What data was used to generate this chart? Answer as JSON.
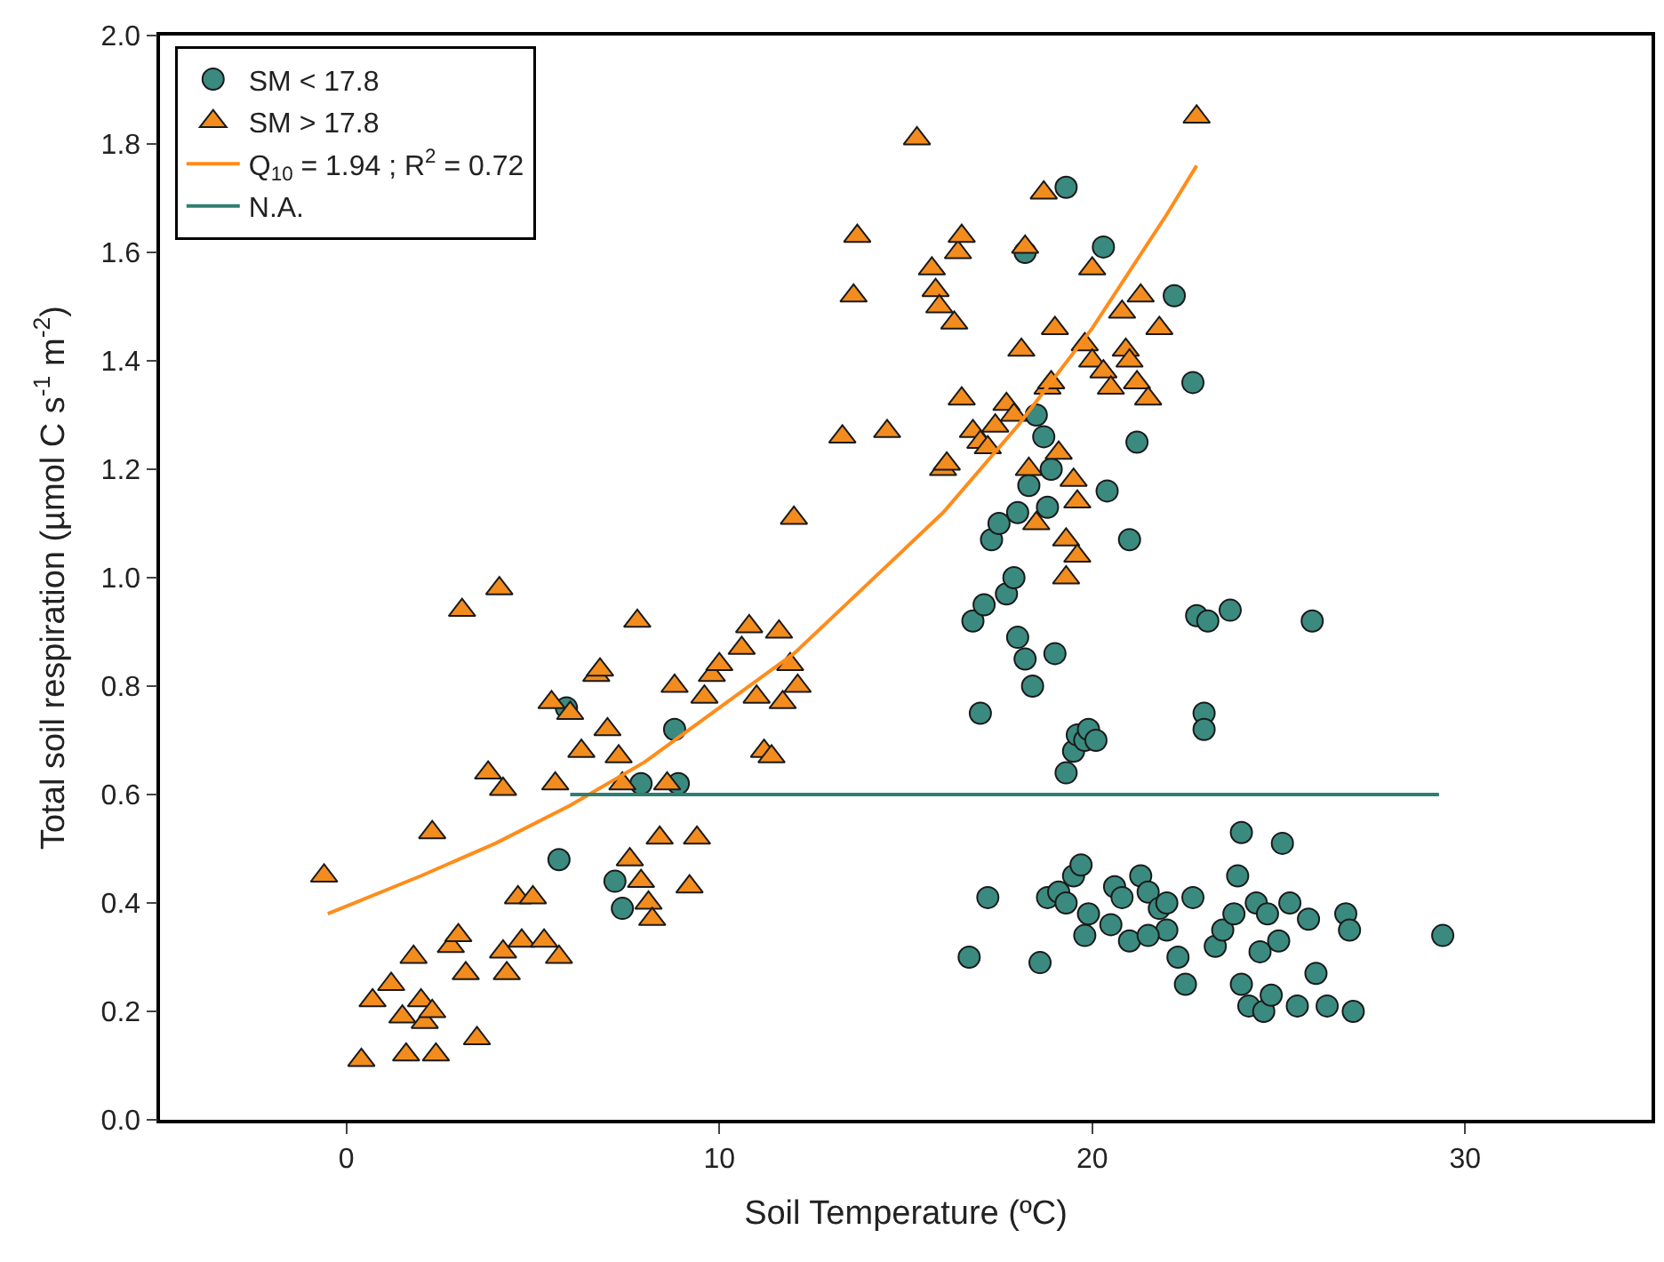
{
  "chart_data": {
    "type": "scatter",
    "xlabel": "Soil Temperature (ºC)",
    "ylabel": "Total soil respiration (µmol C s$^{-1}$ m$^{-2}$)",
    "xlim": [
      -5,
      35
    ],
    "xticks": [
      0,
      10,
      20,
      30
    ],
    "ylim": [
      0,
      2
    ],
    "yticks": [
      {
        "value": 0,
        "label": "0.0"
      },
      {
        "value": 0.2,
        "label": "0.2"
      },
      {
        "value": 0.4,
        "label": "0.4"
      },
      {
        "value": 0.6,
        "label": "0.6"
      },
      {
        "value": 0.8,
        "label": "0.8"
      },
      {
        "value": 1.0,
        "label": "1.0"
      },
      {
        "value": 1.2,
        "label": "1.2"
      },
      {
        "value": 1.4,
        "label": "1.4"
      },
      {
        "value": 1.6,
        "label": "1.6"
      },
      {
        "value": 1.8,
        "label": "1.8"
      },
      {
        "value": 2.0,
        "label": "2.0"
      }
    ],
    "grid": false,
    "legend": "top left",
    "series": [
      {
        "name": "SM < 17.8",
        "marker": "circle",
        "color": "#3b8a7f",
        "x": [
          5.9,
          5.7,
          7.2,
          7.4,
          8.8,
          8.9,
          7.9,
          16.7,
          17.0,
          17.2,
          16.8,
          17.1,
          17.3,
          17.5,
          17.7,
          17.9,
          18.0,
          18.2,
          18.4,
          18.0,
          18.3,
          18.5,
          18.7,
          18.9,
          18.2,
          18.8,
          18.6,
          18.8,
          19.0,
          19.3,
          19.3,
          19.5,
          19.6,
          19.8,
          19.9,
          20.1,
          19.1,
          19.3,
          19.5,
          19.7,
          19.9,
          19.8,
          20.3,
          20.4,
          20.6,
          20.8,
          21.0,
          21.2,
          21.0,
          21.3,
          21.5,
          21.8,
          22.0,
          22.2,
          22.3,
          22.5,
          22.7,
          22.7,
          22.8,
          23.0,
          23.0,
          23.1,
          23.3,
          23.5,
          23.7,
          23.8,
          24.0,
          24.0,
          24.2,
          24.4,
          24.5,
          24.6,
          24.8,
          25.0,
          25.1,
          25.3,
          25.5,
          25.8,
          25.9,
          26.0,
          26.3,
          26.8,
          26.9,
          27.0,
          29.4,
          22.0,
          23.9,
          24.7,
          20.5,
          21.5
        ],
        "values": [
          0.76,
          0.48,
          0.44,
          0.39,
          0.72,
          0.62,
          0.62,
          0.3,
          0.75,
          0.41,
          0.92,
          0.95,
          1.07,
          1.1,
          0.97,
          1.0,
          0.89,
          0.85,
          0.8,
          1.12,
          1.17,
          1.3,
          1.26,
          1.2,
          1.6,
          1.13,
          0.29,
          0.41,
          0.86,
          1.72,
          0.64,
          0.68,
          0.71,
          0.7,
          0.72,
          0.7,
          0.42,
          0.4,
          0.45,
          0.47,
          0.38,
          0.34,
          1.61,
          1.16,
          0.43,
          0.41,
          1.07,
          1.25,
          0.33,
          0.45,
          0.42,
          0.39,
          0.35,
          1.52,
          0.3,
          0.25,
          1.36,
          0.41,
          0.93,
          0.75,
          0.72,
          0.92,
          0.32,
          0.35,
          0.94,
          0.38,
          0.53,
          0.25,
          0.21,
          0.4,
          0.31,
          0.2,
          0.23,
          0.33,
          0.51,
          0.4,
          0.21,
          0.37,
          0.92,
          0.27,
          0.21,
          0.38,
          0.35,
          0.2,
          0.34,
          0.4,
          0.45,
          0.38,
          0.36,
          0.34
        ]
      },
      {
        "name": "SM > 17.8",
        "marker": "triangle",
        "color": "#f28c1e",
        "x": [
          -0.6,
          0.4,
          0.7,
          1.2,
          1.5,
          1.6,
          1.8,
          2.0,
          2.1,
          2.3,
          2.3,
          2.4,
          2.8,
          3.0,
          3.2,
          3.1,
          3.5,
          3.8,
          4.1,
          4.2,
          4.2,
          4.3,
          4.6,
          4.7,
          5.0,
          5.3,
          5.5,
          5.6,
          5.7,
          6.0,
          6.3,
          6.7,
          6.8,
          7.0,
          7.3,
          7.4,
          7.6,
          7.8,
          7.9,
          8.1,
          8.2,
          8.4,
          8.6,
          8.8,
          9.2,
          9.4,
          9.6,
          9.8,
          10.0,
          10.6,
          10.8,
          11.0,
          11.2,
          11.4,
          11.6,
          11.7,
          11.9,
          12.0,
          12.1,
          13.3,
          13.6,
          13.7,
          14.5,
          15.3,
          15.7,
          15.8,
          15.9,
          16.0,
          16.1,
          16.3,
          16.4,
          16.5,
          16.5,
          16.8,
          17.0,
          17.2,
          17.4,
          17.7,
          17.9,
          18.1,
          18.2,
          18.3,
          18.5,
          18.7,
          18.8,
          19.0,
          19.1,
          19.3,
          19.3,
          19.5,
          19.6,
          19.6,
          19.8,
          20.0,
          20.3,
          20.5,
          20.8,
          20.9,
          21.0,
          21.2,
          21.3,
          21.5,
          21.8,
          22.8,
          18.9,
          20.0
        ],
        "values": [
          0.45,
          0.11,
          0.22,
          0.25,
          0.19,
          0.12,
          0.3,
          0.22,
          0.18,
          0.2,
          0.53,
          0.12,
          0.32,
          0.34,
          0.27,
          0.94,
          0.15,
          0.64,
          0.98,
          0.61,
          0.31,
          0.27,
          0.41,
          0.33,
          0.41,
          0.33,
          0.77,
          0.62,
          0.3,
          0.75,
          0.68,
          0.82,
          0.83,
          0.72,
          0.67,
          0.62,
          0.48,
          0.92,
          0.44,
          0.4,
          0.37,
          0.52,
          0.62,
          0.8,
          0.43,
          0.52,
          0.78,
          0.82,
          0.84,
          0.87,
          0.91,
          0.78,
          0.68,
          0.67,
          0.9,
          0.77,
          0.84,
          1.11,
          0.8,
          1.26,
          1.52,
          1.63,
          1.27,
          1.81,
          1.57,
          1.53,
          1.5,
          1.2,
          1.21,
          1.47,
          1.6,
          1.63,
          1.33,
          1.27,
          1.25,
          1.24,
          1.28,
          1.32,
          1.3,
          1.42,
          1.61,
          1.2,
          1.1,
          1.71,
          1.35,
          1.46,
          1.23,
          1.0,
          1.07,
          1.18,
          1.04,
          1.14,
          1.43,
          1.4,
          1.38,
          1.35,
          1.49,
          1.42,
          1.4,
          1.36,
          1.52,
          1.33,
          1.46,
          1.85,
          1.36,
          1.57
        ]
      },
      {
        "name": "Q$_{10}$ = 1.94 ; R$^{2}$ = 0.72",
        "type": "line",
        "marker": "none",
        "color": "#ff8c1a",
        "x": [
          -0.5,
          2,
          4,
          6,
          8,
          10,
          12,
          14,
          16,
          18,
          20,
          22,
          22.8
        ],
        "values": [
          0.38,
          0.45,
          0.51,
          0.58,
          0.66,
          0.76,
          0.86,
          0.99,
          1.12,
          1.28,
          1.46,
          1.67,
          1.76
        ]
      },
      {
        "name": "N.A.",
        "type": "line",
        "marker": "none",
        "color": "#2e7f72",
        "x": [
          6.0,
          29.3
        ],
        "values": [
          0.6,
          0.6
        ]
      }
    ]
  }
}
